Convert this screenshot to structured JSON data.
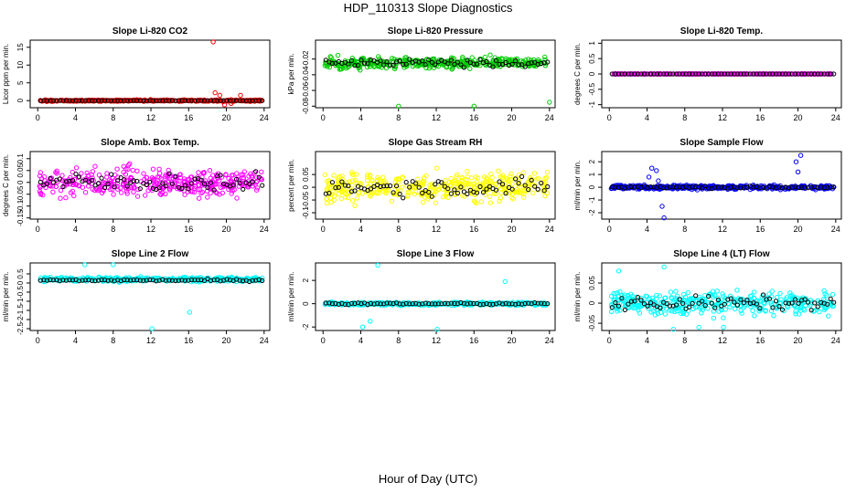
{
  "figure": {
    "title": "HDP_110313  Slope Diagnostics",
    "xlabel": "Hour of Day (UTC)"
  },
  "chart_data": [
    {
      "type": "scatter",
      "title": "Slope Li-820 CO2",
      "ylabel": "Licor ppm per min.",
      "color": "#ff0000",
      "xlim": [
        -0.8,
        24.6
      ],
      "ylim": [
        -2,
        17
      ],
      "xticks": [
        0,
        4,
        8,
        12,
        16,
        20,
        24
      ],
      "yticks": [
        0,
        5,
        10,
        15
      ],
      "center": 0,
      "spread": 0.4,
      "outliers": [
        [
          18.6,
          16.5
        ],
        [
          18.8,
          2.2
        ],
        [
          19.3,
          1.5
        ],
        [
          20.5,
          -0.8
        ],
        [
          21.5,
          1.5
        ],
        [
          19.8,
          -1.2
        ]
      ],
      "black_center": 0,
      "black_spread": 0.05
    },
    {
      "type": "scatter",
      "title": "Slope Li-820 Pressure",
      "ylabel": "kPa per min.",
      "color": "#00cc00",
      "xlim": [
        -0.8,
        24.6
      ],
      "ylim": [
        -0.082,
        0.004
      ],
      "xticks": [
        0,
        4,
        8,
        12,
        16,
        20,
        24
      ],
      "yticks": [
        -0.02,
        -0.04,
        -0.06,
        -0.08
      ],
      "center": -0.025,
      "spread": 0.012,
      "outliers": [
        [
          8,
          -0.08
        ],
        [
          16,
          -0.08
        ],
        [
          24,
          -0.075
        ]
      ],
      "black_center": -0.025,
      "black_spread": 0.008
    },
    {
      "type": "scatter",
      "title": "Slope Li-820 Temp.",
      "ylabel": "degrees C per min.",
      "color": "#ff00ff",
      "xlim": [
        -0.8,
        24.6
      ],
      "ylim": [
        -1.1,
        1.1
      ],
      "xticks": [
        0,
        4,
        8,
        12,
        16,
        20,
        24
      ],
      "yticks": [
        -1.0,
        -0.5,
        0.0,
        0.5,
        1.0
      ],
      "center": 0,
      "spread": 0.002,
      "outliers": [],
      "black_center": 0,
      "black_spread": 0.001
    },
    {
      "type": "scatter",
      "title": "Slope Amb. Box Temp.",
      "ylabel": "degrees C per min.",
      "color": "#ff00ff",
      "xlim": [
        -0.8,
        24.6
      ],
      "ylim": [
        -0.155,
        0.13
      ],
      "xticks": [
        0,
        4,
        8,
        12,
        16,
        20,
        24
      ],
      "yticks": [
        -0.15,
        -0.1,
        -0.05,
        0.0,
        0.05,
        0.1
      ],
      "center": 0,
      "spread": 0.1,
      "outliers": [],
      "black_center": 0,
      "black_spread": 0.07
    },
    {
      "type": "scatter",
      "title": "Slope Gas Stream RH",
      "ylabel": "percent per min.",
      "color": "#ffff00",
      "xlim": [
        -0.8,
        24.6
      ],
      "ylim": [
        -0.125,
        0.14
      ],
      "xticks": [
        0,
        4,
        8,
        12,
        16,
        20,
        24
      ],
      "yticks": [
        -0.1,
        -0.05,
        0.0,
        0.05
      ],
      "center": 0,
      "spread": 0.1,
      "outliers": [],
      "black_center": 0,
      "black_spread": 0.06
    },
    {
      "type": "scatter",
      "title": "Slope Sample Flow",
      "ylabel": "ml/min per min.",
      "color": "#0000ff",
      "xlim": [
        -0.8,
        24.6
      ],
      "ylim": [
        -2.5,
        2.8
      ],
      "xticks": [
        0,
        4,
        8,
        12,
        16,
        20,
        24
      ],
      "yticks": [
        -2,
        -1,
        0,
        1,
        2
      ],
      "center": 0,
      "spread": 0.3,
      "outliers": [
        [
          4.5,
          1.5
        ],
        [
          5.0,
          1.3
        ],
        [
          4.2,
          0.8
        ],
        [
          5.8,
          -2.4
        ],
        [
          5.6,
          -1.5
        ],
        [
          20.3,
          2.5
        ],
        [
          19.8,
          2.0
        ],
        [
          20.0,
          1.2
        ],
        [
          5.2,
          0.5
        ]
      ],
      "black_center": 0,
      "black_spread": 0.15
    },
    {
      "type": "scatter",
      "title": "Slope Line 2 Flow",
      "ylabel": "ml/min per min.",
      "color": "#00ffff",
      "xlim": [
        -0.8,
        24.6
      ],
      "ylim": [
        -2.6,
        1.1
      ],
      "xticks": [
        0,
        4,
        8,
        12,
        16,
        20,
        24
      ],
      "yticks": [
        -2.5,
        -2.0,
        -1.5,
        -1.0,
        -0.5,
        0.0,
        0.5
      ],
      "center": 0.2,
      "spread": 0.2,
      "outliers": [
        [
          12.1,
          -2.5
        ],
        [
          16.1,
          -1.6
        ],
        [
          5.0,
          1.0
        ],
        [
          8.0,
          1.0
        ]
      ],
      "black_center": 0.15,
      "black_spread": 0.1
    },
    {
      "type": "scatter",
      "title": "Slope Line 3 Flow",
      "ylabel": "ml/min per min.",
      "color": "#00ffff",
      "xlim": [
        -0.8,
        24.6
      ],
      "ylim": [
        -2.3,
        3.5
      ],
      "xticks": [
        0,
        4,
        8,
        12,
        16,
        20,
        24
      ],
      "yticks": [
        -2,
        0,
        2
      ],
      "center": 0,
      "spread": 0.25,
      "outliers": [
        [
          4.2,
          -2.0
        ],
        [
          5.8,
          3.3
        ],
        [
          19.3,
          1.9
        ],
        [
          12.1,
          -2.2
        ],
        [
          5.0,
          -1.5
        ]
      ],
      "black_center": 0,
      "black_spread": 0.15
    },
    {
      "type": "scatter",
      "title": "Slope Line 4 (LT) Flow",
      "ylabel": "ml/min per min.",
      "color": "#00ffff",
      "xlim": [
        -0.8,
        24.6
      ],
      "ylim": [
        -0.068,
        0.1
      ],
      "xticks": [
        0,
        4,
        8,
        12,
        16,
        20,
        24
      ],
      "yticks": [
        -0.05,
        0.0,
        0.05
      ],
      "center": 0,
      "spread": 0.05,
      "outliers": [
        [
          5.8,
          0.09
        ],
        [
          6.8,
          -0.065
        ],
        [
          9.5,
          -0.06
        ],
        [
          12.1,
          -0.06
        ],
        [
          1.0,
          0.08
        ]
      ],
      "black_center": 0,
      "black_spread": 0.03
    }
  ]
}
